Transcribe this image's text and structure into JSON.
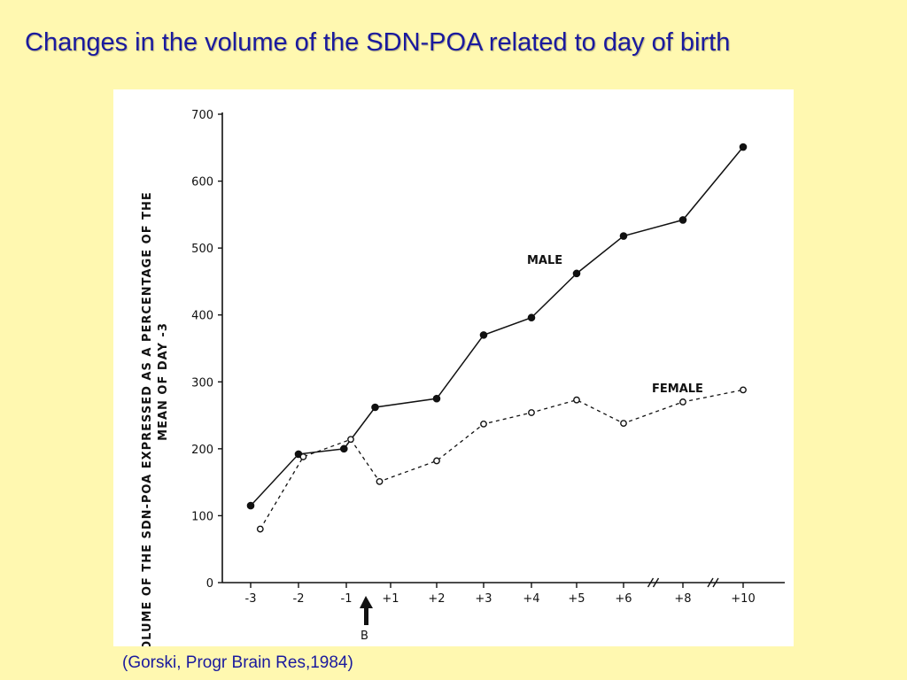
{
  "slide": {
    "title": "Changes in the volume of the SDN-POA related to day of birth",
    "caption": "(Gorski, Progr Brain Res,1984)"
  },
  "chart_data": {
    "type": "line",
    "title": "",
    "ylabel_line1": "VOLUME OF THE SDN-POA EXPRESSED AS A PERCENTAGE OF THE",
    "ylabel_line2": "MEAN OF DAY -3",
    "ylim": [
      0,
      700
    ],
    "yticks": [
      "0",
      "100",
      "200",
      "300",
      "400",
      "500",
      "600",
      "700"
    ],
    "categories": [
      "-3",
      "-2",
      "-1",
      "+1",
      "+2",
      "+3",
      "+4",
      "+5",
      "+6",
      "+8",
      "+10"
    ],
    "birth_marker": {
      "label": "B",
      "position_between": [
        "-1",
        "+1"
      ]
    },
    "axis_breaks": [
      [
        "+6",
        "+8"
      ],
      [
        "+8",
        "+10"
      ]
    ],
    "series": [
      {
        "name": "MALE",
        "marker": "filled-circle",
        "line_style": "solid",
        "points": [
          {
            "x": -3.0,
            "y": 115
          },
          {
            "x": -2.0,
            "y": 192
          },
          {
            "x": -1.05,
            "y": 200
          },
          {
            "x": 0.3,
            "y": 262
          },
          {
            "x": 2.0,
            "y": 275
          },
          {
            "x": 3.0,
            "y": 370
          },
          {
            "x": 4.0,
            "y": 396
          },
          {
            "x": 5.0,
            "y": 462
          },
          {
            "x": 6.0,
            "y": 518
          },
          {
            "x": 8.0,
            "y": 542
          },
          {
            "x": 10.0,
            "y": 651
          }
        ]
      },
      {
        "name": "FEMALE",
        "marker": "open-circle",
        "line_style": "dashed",
        "points": [
          {
            "x": -2.8,
            "y": 80
          },
          {
            "x": -1.9,
            "y": 188
          },
          {
            "x": -0.8,
            "y": 214
          },
          {
            "x": 0.5,
            "y": 151
          },
          {
            "x": 2.0,
            "y": 182
          },
          {
            "x": 3.0,
            "y": 237
          },
          {
            "x": 4.0,
            "y": 254
          },
          {
            "x": 5.0,
            "y": 273
          },
          {
            "x": 6.0,
            "y": 238
          },
          {
            "x": 8.0,
            "y": 270
          },
          {
            "x": 10.0,
            "y": 288
          }
        ]
      }
    ]
  }
}
